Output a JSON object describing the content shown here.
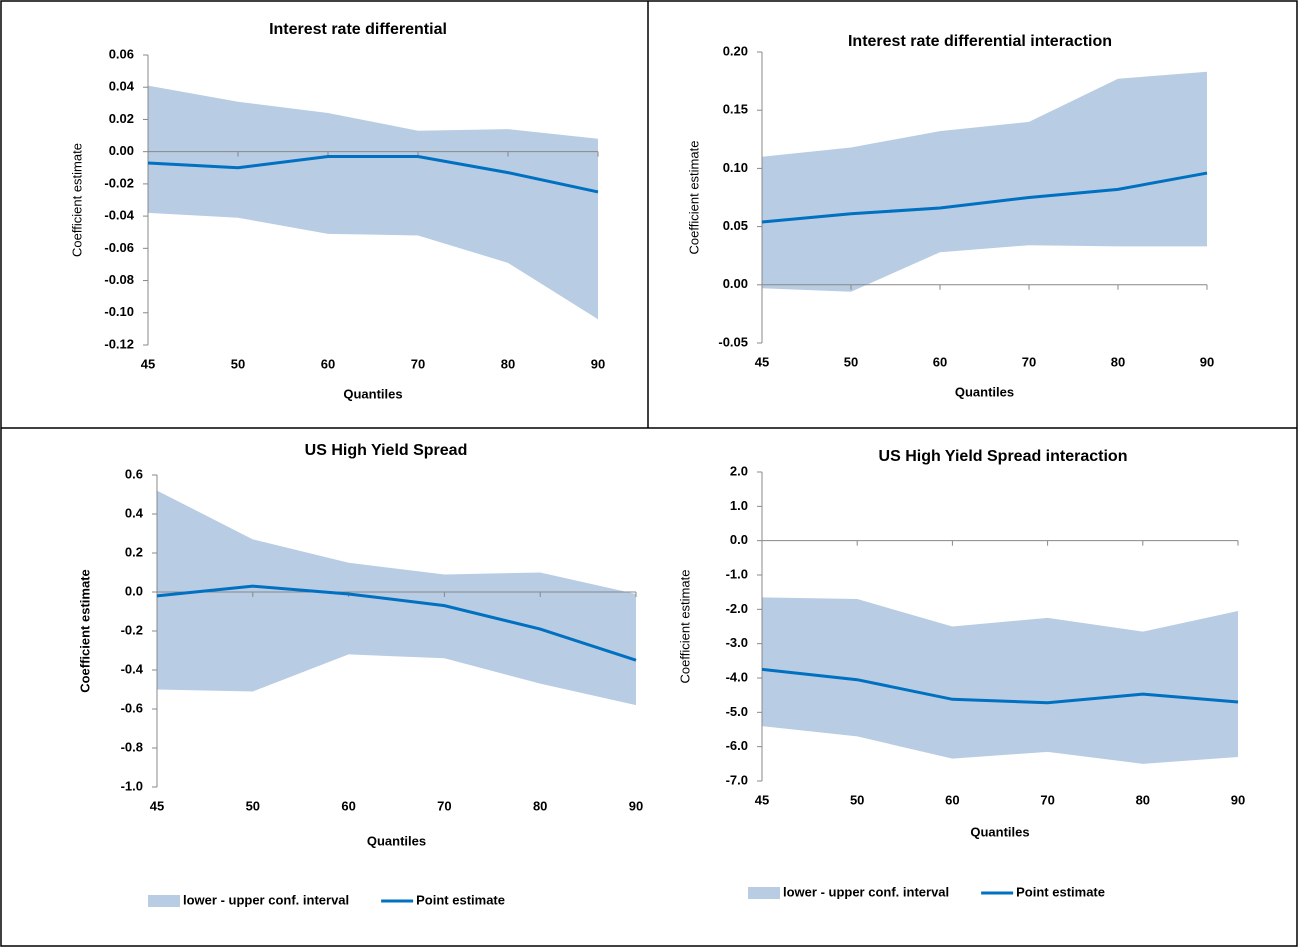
{
  "chart_data": [
    {
      "type": "band-line",
      "title": "Interest rate differential",
      "x_label": "Quantiles",
      "y_label": "Coefficient estimate",
      "categories": [
        "45",
        "50",
        "60",
        "70",
        "80",
        "90"
      ],
      "ylim": [
        -0.12,
        0.06
      ],
      "yticks": [
        {
          "value": -0.12,
          "label": "-0.12"
        },
        {
          "value": -0.1,
          "label": "-0.10"
        },
        {
          "value": -0.08,
          "label": "-0.08"
        },
        {
          "value": -0.06,
          "label": "-0.06"
        },
        {
          "value": -0.04,
          "label": "-0.04"
        },
        {
          "value": -0.02,
          "label": "-0.02"
        },
        {
          "value": 0,
          "label": "0.00"
        },
        {
          "value": 0.02,
          "label": "0.02"
        },
        {
          "value": 0.04,
          "label": "0.04"
        },
        {
          "value": 0.06,
          "label": "0.06"
        }
      ],
      "series": [
        {
          "color": "#b8cce4",
          "lower": [
            -0.038,
            -0.041,
            -0.051,
            -0.052,
            -0.069,
            -0.104
          ],
          "upper": [
            0.041,
            0.031,
            0.024,
            0.013,
            0.014,
            0.008
          ]
        },
        {
          "color": "#0070c0",
          "values": [
            -0.007,
            -0.01,
            -0.003,
            -0.003,
            -0.013,
            -0.025
          ]
        }
      ]
    },
    {
      "type": "band-line",
      "title": "Interest rate  differential interaction",
      "x_label": "Quantiles",
      "y_label": "Coefficient estimate",
      "categories": [
        "45",
        "50",
        "60",
        "70",
        "80",
        "90"
      ],
      "ylim": [
        -0.05,
        0.2
      ],
      "yticks": [
        {
          "value": -0.05,
          "label": "-0.05"
        },
        {
          "value": 0,
          "label": "0.00"
        },
        {
          "value": 0.05,
          "label": "0.05"
        },
        {
          "value": 0.1,
          "label": "0.10"
        },
        {
          "value": 0.15,
          "label": "0.15"
        },
        {
          "value": 0.2,
          "label": "0.20"
        }
      ],
      "series": [
        {
          "color": "#b8cce4",
          "lower": [
            -0.003,
            -0.006,
            0.028,
            0.034,
            0.033,
            0.033
          ],
          "upper": [
            0.11,
            0.118,
            0.132,
            0.14,
            0.177,
            0.183
          ]
        },
        {
          "color": "#0070c0",
          "values": [
            0.054,
            0.061,
            0.066,
            0.075,
            0.082,
            0.096
          ]
        }
      ]
    },
    {
      "type": "band-line",
      "title": "US High Yield Spread",
      "x_label": "Quantiles",
      "y_label": "Coefficient estimate",
      "categories": [
        "45",
        "50",
        "60",
        "70",
        "80",
        "90"
      ],
      "ylim": [
        -1.0,
        0.6
      ],
      "yticks": [
        {
          "value": -1,
          "label": "-1.0"
        },
        {
          "value": -0.8,
          "label": "-0.8"
        },
        {
          "value": -0.6,
          "label": "-0.6"
        },
        {
          "value": -0.4,
          "label": "-0.4"
        },
        {
          "value": -0.2,
          "label": "-0.2"
        },
        {
          "value": 0,
          "label": "0.0"
        },
        {
          "value": 0.2,
          "label": "0.2"
        },
        {
          "value": 0.4,
          "label": "0.4"
        },
        {
          "value": 0.6,
          "label": "0.6"
        }
      ],
      "series": [
        {
          "name": "lower - upper conf. interval",
          "color": "#b8cce4",
          "lower": [
            -0.5,
            -0.51,
            -0.32,
            -0.34,
            -0.47,
            -0.58
          ],
          "upper": [
            0.52,
            0.27,
            0.15,
            0.09,
            0.1,
            -0.01
          ]
        },
        {
          "name": "Point estimate",
          "color": "#0070c0",
          "values": [
            -0.02,
            0.03,
            -0.01,
            -0.07,
            -0.19,
            -0.35
          ]
        }
      ]
    },
    {
      "type": "band-line",
      "title": "US High Yield  Spread interaction",
      "x_label": "Quantiles",
      "y_label": "Coefficient estimate",
      "categories": [
        "45",
        "50",
        "60",
        "70",
        "80",
        "90"
      ],
      "ylim": [
        -7.0,
        2.0
      ],
      "yticks": [
        {
          "value": -7,
          "label": "-7.0"
        },
        {
          "value": -6,
          "label": "-6.0"
        },
        {
          "value": -5,
          "label": "-5.0"
        },
        {
          "value": -4,
          "label": "-4.0"
        },
        {
          "value": -3,
          "label": "-3.0"
        },
        {
          "value": -2,
          "label": "-2.0"
        },
        {
          "value": -1,
          "label": "-1.0"
        },
        {
          "value": 0,
          "label": "0.0"
        },
        {
          "value": 1,
          "label": "1.0"
        },
        {
          "value": 2,
          "label": "2.0"
        }
      ],
      "series": [
        {
          "name": "lower - upper conf. interval",
          "color": "#b8cce4",
          "lower": [
            -5.4,
            -5.7,
            -6.35,
            -6.15,
            -6.5,
            -6.3
          ],
          "upper": [
            -1.65,
            -1.7,
            -2.5,
            -2.25,
            -2.65,
            -2.05
          ]
        },
        {
          "name": "Point estimate",
          "color": "#0070c0",
          "values": [
            -3.75,
            -4.05,
            -4.62,
            -4.72,
            -4.47,
            -4.7
          ]
        }
      ]
    }
  ]
}
